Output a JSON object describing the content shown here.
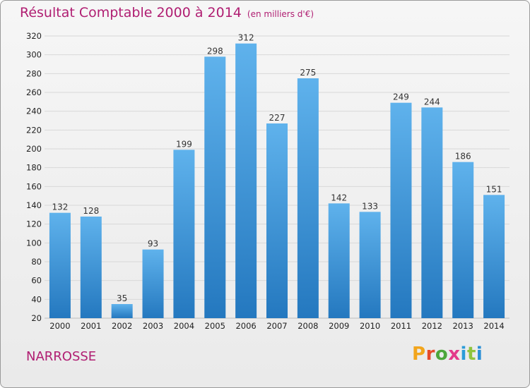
{
  "header": {
    "title": "Résultat Comptable 2000 à 2014",
    "unit": "(en milliers d'€)"
  },
  "footer": {
    "place": "NARROSSE",
    "logo_letters": [
      "P",
      "r",
      "o",
      "x",
      "i",
      "t",
      "i"
    ]
  },
  "colors": {
    "bar_light": "#5fb2ec",
    "bar_dark": "#2478bf",
    "title": "#b01e72",
    "grid": "#d8d8d8"
  },
  "chart_data": {
    "type": "bar",
    "title": "Résultat Comptable 2000 à 2014",
    "subtitle": "(en milliers d'€)",
    "xlabel": "",
    "ylabel": "",
    "categories": [
      "2000",
      "2001",
      "2002",
      "2003",
      "2004",
      "2005",
      "2006",
      "2007",
      "2008",
      "2009",
      "2010",
      "2011",
      "2012",
      "2013",
      "2014"
    ],
    "values": [
      132,
      128,
      35,
      93,
      199,
      298,
      312,
      227,
      275,
      142,
      133,
      249,
      244,
      186,
      151
    ],
    "value_labels": [
      "132",
      "128",
      "35",
      "93",
      "199",
      "298",
      "312",
      "227",
      "275",
      "142",
      "133",
      "249",
      "244",
      "186",
      "151"
    ],
    "ylim": [
      20,
      320
    ],
    "yticks": [
      20,
      40,
      60,
      80,
      100,
      120,
      140,
      160,
      180,
      200,
      220,
      240,
      260,
      280,
      300,
      320
    ],
    "ytick_labels": [
      "20",
      "40",
      "60",
      "80",
      "100",
      "120",
      "140",
      "160",
      "180",
      "200",
      "220",
      "240",
      "260",
      "280",
      "300",
      "320"
    ],
    "grid": true,
    "legend": "none"
  }
}
